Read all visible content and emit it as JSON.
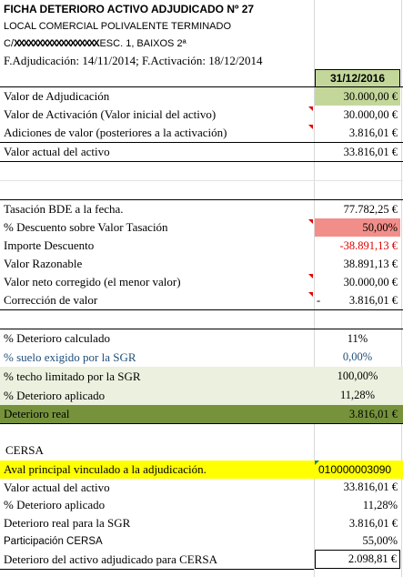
{
  "header": {
    "title": "FICHA DETERIORO ACTIVO ADJUDICADO Nº 27",
    "property": "LOCAL COMERCIAL POLIVALENTE TERMINADO",
    "address_prefix": "C/",
    "address_redacted": "XXXXXXXXXXXXXXXXXX",
    "address_suffix": "ESC. 1, BAIXOS 2ª",
    "dates": "F.Adjudicación: 14/11/2014; F.Activación: 18/12/2014",
    "date_col": "31/12/2016"
  },
  "valuation": [
    {
      "label": "Valor de Adjudicación",
      "value": "30.000,00 €"
    },
    {
      "label": "Valor de Activación (Valor inicial del activo)",
      "value": "30.000,00 €"
    },
    {
      "label": "Adiciones de valor (posteriores a la activación)",
      "value": "3.816,01 €"
    },
    {
      "label": "Valor actual del activo",
      "value": "33.816,01 €"
    }
  ],
  "appraisal": [
    {
      "label": "Tasación BDE a la fecha.",
      "value": "77.782,25 €"
    },
    {
      "label": "% Descuento sobre Valor Tasación",
      "value": "50,00%"
    },
    {
      "label": "Importe Descuento",
      "value": "-38.891,13 €"
    },
    {
      "label": "Valor Razonable",
      "value": "38.891,13 €"
    },
    {
      "label": "Valor neto corregido (el menor valor)",
      "value": "30.000,00 €"
    },
    {
      "label": "Corrección de valor",
      "value_prefix": "-",
      "value": "3.816,01 €"
    }
  ],
  "impairment": [
    {
      "label": "% Deterioro calculado",
      "value": "11%"
    },
    {
      "label": "%  suelo exigido por la SGR",
      "value": "0,00%"
    },
    {
      "label": "% techo limitado por la SGR",
      "value": "100,00%"
    },
    {
      "label": "% Deterioro aplicado",
      "value": "11,28%"
    },
    {
      "label": "Deterioro real",
      "value": "3.816,01 €"
    }
  ],
  "cersa": {
    "title": "CERSA",
    "rows": [
      {
        "label": "Aval principal vinculado a la adjudicación.",
        "value": "010000003090"
      },
      {
        "label": "Valor actual del activo",
        "value": "33.816,01 €"
      },
      {
        "label": "% Deterioro aplicado",
        "value": "11,28%"
      },
      {
        "label": "Deterioro real para la SGR",
        "value": "3.816,01 €"
      },
      {
        "label": "Participación CERSA",
        "value": "55,00%"
      },
      {
        "label": "Deterioro del activo adjudicado para CERSA",
        "value": "2.098,81 €"
      }
    ]
  },
  "colors": {
    "light_green": "#c4d79b",
    "pale_green": "#ebf1de",
    "dark_green": "#76933c",
    "salmon": "#f28e8a",
    "yellow": "#ffff00",
    "red_text": "#e00000",
    "blue_text": "#1f4e79",
    "green_text": "#1e7a34"
  }
}
